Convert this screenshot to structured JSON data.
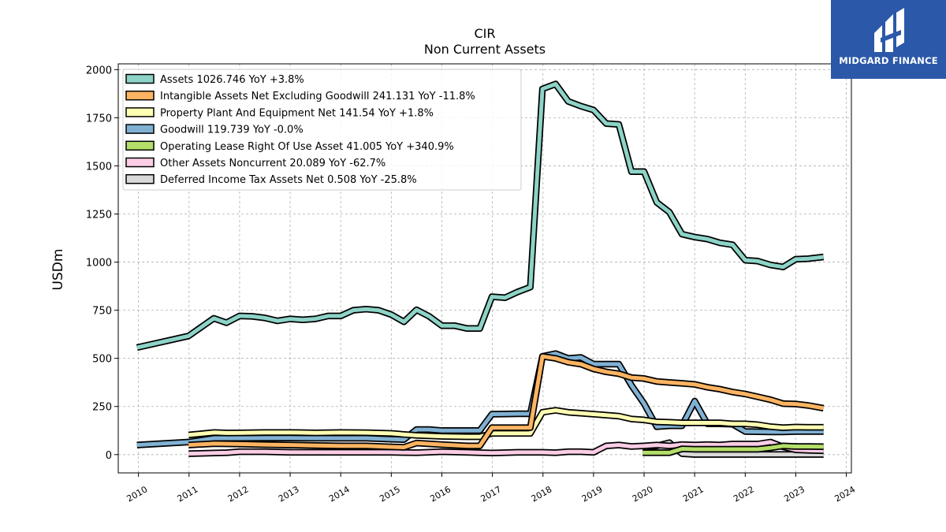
{
  "logo": {
    "brand": "MIDGARD FINANCE",
    "color": "#2b58a8",
    "icon": "midgard-logo-icon"
  },
  "chart_data": {
    "type": "line",
    "title": "CIR",
    "subtitle": "Non Current  Assets",
    "ylabel": "USDm",
    "xlabel": "",
    "xlim": [
      2009.6,
      2024.1
    ],
    "ylim": [
      -95,
      2030
    ],
    "yticks": [
      0,
      250,
      500,
      750,
      1000,
      1250,
      1500,
      1750,
      2000
    ],
    "xticks": [
      "2010",
      "2011",
      "2012",
      "2013",
      "2014",
      "2015",
      "2016",
      "2017",
      "2018",
      "2019",
      "2020",
      "2021",
      "2022",
      "2023",
      "2024"
    ],
    "grid": true,
    "legend_position": "top-left",
    "series": [
      {
        "name": "Assets  1026.746 YoY +3.8%",
        "color": "#8dd3c7",
        "points": [
          [
            2009.97,
            556
          ],
          [
            2010.99,
            616
          ],
          [
            2011.49,
            708
          ],
          [
            2011.74,
            685
          ],
          [
            2012.0,
            720
          ],
          [
            2012.25,
            718
          ],
          [
            2012.5,
            710
          ],
          [
            2012.75,
            695
          ],
          [
            2013.0,
            705
          ],
          [
            2013.25,
            700
          ],
          [
            2013.5,
            705
          ],
          [
            2013.75,
            720
          ],
          [
            2014.0,
            720
          ],
          [
            2014.25,
            750
          ],
          [
            2014.5,
            756
          ],
          [
            2014.75,
            750
          ],
          [
            2015.0,
            727
          ],
          [
            2015.25,
            690
          ],
          [
            2015.5,
            752
          ],
          [
            2015.75,
            718
          ],
          [
            2016.0,
            670
          ],
          [
            2016.25,
            670
          ],
          [
            2016.5,
            655
          ],
          [
            2016.75,
            655
          ],
          [
            2016.99,
            820
          ],
          [
            2017.25,
            815
          ],
          [
            2017.5,
            845
          ],
          [
            2017.75,
            870
          ],
          [
            2017.99,
            1900
          ],
          [
            2018.25,
            1925
          ],
          [
            2018.5,
            1835
          ],
          [
            2018.75,
            1810
          ],
          [
            2019.0,
            1790
          ],
          [
            2019.25,
            1720
          ],
          [
            2019.5,
            1715
          ],
          [
            2019.75,
            1470
          ],
          [
            2020.0,
            1470
          ],
          [
            2020.25,
            1310
          ],
          [
            2020.5,
            1260
          ],
          [
            2020.75,
            1145
          ],
          [
            2021.0,
            1130
          ],
          [
            2021.25,
            1120
          ],
          [
            2021.5,
            1100
          ],
          [
            2021.75,
            1090
          ],
          [
            2022.0,
            1010
          ],
          [
            2022.25,
            1005
          ],
          [
            2022.5,
            985
          ],
          [
            2022.75,
            975
          ],
          [
            2023.0,
            1015
          ],
          [
            2023.25,
            1018
          ],
          [
            2023.55,
            1027
          ]
        ]
      },
      {
        "name": "Intangible Assets Net Excluding Goodwill  241.131 YoY -11.8%",
        "color": "#fdb462",
        "points": [
          [
            2010.99,
            50
          ],
          [
            2011.5,
            57
          ],
          [
            2012.0,
            55
          ],
          [
            2012.5,
            52
          ],
          [
            2013.0,
            50
          ],
          [
            2013.5,
            47
          ],
          [
            2014.0,
            45
          ],
          [
            2014.5,
            45
          ],
          [
            2015.0,
            40
          ],
          [
            2015.25,
            38
          ],
          [
            2015.5,
            60
          ],
          [
            2016.0,
            52
          ],
          [
            2016.5,
            45
          ],
          [
            2016.75,
            45
          ],
          [
            2016.99,
            140
          ],
          [
            2017.5,
            140
          ],
          [
            2017.75,
            140
          ],
          [
            2017.99,
            510
          ],
          [
            2018.25,
            500
          ],
          [
            2018.5,
            480
          ],
          [
            2018.75,
            470
          ],
          [
            2019.0,
            445
          ],
          [
            2019.25,
            430
          ],
          [
            2019.5,
            420
          ],
          [
            2019.75,
            400
          ],
          [
            2020.0,
            395
          ],
          [
            2020.25,
            380
          ],
          [
            2020.5,
            375
          ],
          [
            2020.75,
            370
          ],
          [
            2021.0,
            365
          ],
          [
            2021.25,
            350
          ],
          [
            2021.5,
            340
          ],
          [
            2021.75,
            325
          ],
          [
            2022.0,
            315
          ],
          [
            2022.25,
            300
          ],
          [
            2022.5,
            285
          ],
          [
            2022.75,
            265
          ],
          [
            2023.0,
            263
          ],
          [
            2023.25,
            255
          ],
          [
            2023.55,
            241
          ]
        ]
      },
      {
        "name": "Property Plant And Equipment Net  141.54 YoY +1.8%",
        "color": "#ffffb3",
        "points": [
          [
            2010.99,
            102
          ],
          [
            2011.5,
            115
          ],
          [
            2011.75,
            112
          ],
          [
            2012.0,
            113
          ],
          [
            2012.5,
            115
          ],
          [
            2013.0,
            115
          ],
          [
            2013.5,
            113
          ],
          [
            2014.0,
            115
          ],
          [
            2014.5,
            114
          ],
          [
            2015.0,
            110
          ],
          [
            2015.25,
            105
          ],
          [
            2015.5,
            100
          ],
          [
            2016.0,
            95
          ],
          [
            2016.5,
            93
          ],
          [
            2016.75,
            93
          ],
          [
            2016.99,
            110
          ],
          [
            2017.5,
            110
          ],
          [
            2017.75,
            110
          ],
          [
            2017.99,
            220
          ],
          [
            2018.25,
            230
          ],
          [
            2018.5,
            220
          ],
          [
            2018.75,
            215
          ],
          [
            2019.0,
            210
          ],
          [
            2019.25,
            205
          ],
          [
            2019.5,
            200
          ],
          [
            2019.75,
            185
          ],
          [
            2020.0,
            180
          ],
          [
            2020.25,
            170
          ],
          [
            2020.5,
            168
          ],
          [
            2020.75,
            165
          ],
          [
            2021.0,
            165
          ],
          [
            2021.25,
            165
          ],
          [
            2021.5,
            165
          ],
          [
            2021.75,
            160
          ],
          [
            2022.0,
            160
          ],
          [
            2022.25,
            155
          ],
          [
            2022.5,
            145
          ],
          [
            2022.75,
            140
          ],
          [
            2023.0,
            143
          ],
          [
            2023.25,
            142
          ],
          [
            2023.55,
            142
          ]
        ]
      },
      {
        "name": "Goodwill  119.739 YoY -0.0%",
        "color": "#80b1d3",
        "points": [
          [
            2009.97,
            50
          ],
          [
            2010.99,
            65
          ],
          [
            2011.5,
            85
          ],
          [
            2012.0,
            85
          ],
          [
            2012.5,
            86
          ],
          [
            2013.0,
            86
          ],
          [
            2013.5,
            85
          ],
          [
            2014.0,
            85
          ],
          [
            2014.5,
            85
          ],
          [
            2015.0,
            80
          ],
          [
            2015.25,
            78
          ],
          [
            2015.5,
            130
          ],
          [
            2015.75,
            130
          ],
          [
            2016.0,
            125
          ],
          [
            2016.5,
            125
          ],
          [
            2016.75,
            125
          ],
          [
            2016.99,
            210
          ],
          [
            2017.5,
            212
          ],
          [
            2017.75,
            212
          ],
          [
            2017.99,
            510
          ],
          [
            2018.25,
            525
          ],
          [
            2018.5,
            500
          ],
          [
            2018.75,
            505
          ],
          [
            2019.0,
            470
          ],
          [
            2019.25,
            470
          ],
          [
            2019.5,
            470
          ],
          [
            2019.75,
            360
          ],
          [
            2020.0,
            265
          ],
          [
            2020.25,
            145
          ],
          [
            2020.5,
            150
          ],
          [
            2020.75,
            150
          ],
          [
            2021.0,
            278
          ],
          [
            2021.25,
            160
          ],
          [
            2021.5,
            160
          ],
          [
            2021.75,
            158
          ],
          [
            2022.0,
            120
          ],
          [
            2022.5,
            118
          ],
          [
            2022.75,
            118
          ],
          [
            2023.0,
            120
          ],
          [
            2023.55,
            120
          ]
        ]
      },
      {
        "name": "Operating Lease Right Of Use Asset  41.005 YoY +340.9%",
        "color": "#b3de69",
        "points": [
          [
            2019.97,
            10
          ],
          [
            2020.25,
            10
          ],
          [
            2020.5,
            10
          ],
          [
            2020.75,
            30
          ],
          [
            2021.0,
            28
          ],
          [
            2021.5,
            28
          ],
          [
            2022.0,
            28
          ],
          [
            2022.25,
            28
          ],
          [
            2022.5,
            35
          ],
          [
            2022.75,
            45
          ],
          [
            2023.0,
            42
          ],
          [
            2023.25,
            42
          ],
          [
            2023.55,
            41
          ]
        ]
      },
      {
        "name": "Other Assets Noncurrent  20.089 YoY -62.7%",
        "color": "#fccde5",
        "points": [
          [
            2010.99,
            5
          ],
          [
            2011.5,
            8
          ],
          [
            2011.75,
            10
          ],
          [
            2012.0,
            15
          ],
          [
            2012.5,
            15
          ],
          [
            2013.0,
            12
          ],
          [
            2013.5,
            12
          ],
          [
            2014.0,
            12
          ],
          [
            2014.5,
            12
          ],
          [
            2015.0,
            12
          ],
          [
            2015.5,
            10
          ],
          [
            2016.0,
            15
          ],
          [
            2016.5,
            12
          ],
          [
            2016.75,
            10
          ],
          [
            2016.99,
            8
          ],
          [
            2017.5,
            12
          ],
          [
            2017.75,
            12
          ],
          [
            2017.99,
            12
          ],
          [
            2018.25,
            10
          ],
          [
            2018.5,
            15
          ],
          [
            2018.75,
            15
          ],
          [
            2019.0,
            12
          ],
          [
            2019.25,
            45
          ],
          [
            2019.5,
            50
          ],
          [
            2019.75,
            42
          ],
          [
            2020.0,
            45
          ],
          [
            2020.25,
            50
          ],
          [
            2020.5,
            45
          ],
          [
            2020.75,
            52
          ],
          [
            2021.0,
            50
          ],
          [
            2021.25,
            52
          ],
          [
            2021.5,
            50
          ],
          [
            2021.75,
            55
          ],
          [
            2022.0,
            55
          ],
          [
            2022.25,
            55
          ],
          [
            2022.5,
            65
          ],
          [
            2022.75,
            40
          ],
          [
            2023.0,
            25
          ],
          [
            2023.25,
            22
          ],
          [
            2023.55,
            20
          ]
        ]
      },
      {
        "name": "Deferred Income Tax Assets Net  0.508 YoY -25.8%",
        "color": "#d9d9d9",
        "points": [
          [
            2019.97,
            35
          ],
          [
            2020.25,
            45
          ],
          [
            2020.5,
            62
          ],
          [
            2020.75,
            5
          ],
          [
            2021.0,
            1
          ],
          [
            2021.5,
            1
          ],
          [
            2022.0,
            1
          ],
          [
            2022.5,
            1
          ],
          [
            2023.0,
            1
          ],
          [
            2023.55,
            1
          ]
        ]
      }
    ]
  }
}
